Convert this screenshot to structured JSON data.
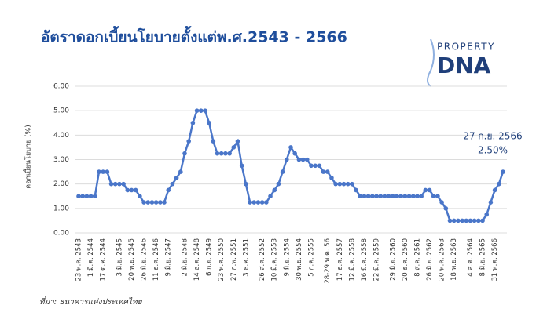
{
  "chart_data": {
    "type": "line",
    "title": "อัตราดอกเบี้ยนโยบายตั้งแต่พ.ศ.2543 - 2566",
    "y_label": "ดอกเบี้ยนโยบาย (%)",
    "source": "ที่มา: ธนาคารแห่งประเทศไทย",
    "annotation": "27 ก.ย. 2566",
    "logo": {
      "top": "PROPERTY",
      "bottom": "DNA"
    },
    "color": "#4a76c9",
    "grid": true,
    "ylim": [
      0,
      6
    ],
    "yticks": [
      {
        "value": 0,
        "label": "0.00"
      },
      {
        "value": 1,
        "label": "1.00"
      },
      {
        "value": 2,
        "label": "2.00"
      },
      {
        "value": 3,
        "label": "3.00"
      },
      {
        "value": 4,
        "label": "4.00"
      },
      {
        "value": 5,
        "label": "5.00"
      },
      {
        "value": 6,
        "label": "6.00"
      }
    ],
    "categories": [
      "23 พ.ค. 2543",
      null,
      null,
      "1 มี.ค. 2544",
      null,
      null,
      "17 ต.ค. 2544",
      null,
      null,
      null,
      "3 มิ.ย. 2545",
      null,
      null,
      "20 พ.ย. 2545",
      null,
      null,
      "26 มิ.ย. 2546",
      null,
      null,
      "11 ธ.ค. 2546",
      null,
      null,
      "9 มิ.ย. 2547",
      null,
      null,
      null,
      "2 มิ.ย. 2548",
      null,
      null,
      "14 ธ.ค. 2548",
      null,
      null,
      "6 ก.ย. 2549",
      null,
      null,
      "23 พ.ค. 2550",
      null,
      null,
      "27 ก.พ. 2551",
      null,
      null,
      "3 ธ.ค. 2551",
      null,
      null,
      null,
      "26 ส.ค. 2552",
      null,
      null,
      "10 มี.ค. 2553",
      null,
      null,
      "9 มิ.ย. 2554",
      null,
      null,
      "30 พ.ย. 2554",
      null,
      null,
      "5 ก.ค. 2555",
      null,
      null,
      null,
      "28-29 พ.ค. 56",
      null,
      null,
      "17 ธ.ค. 2557",
      null,
      null,
      "12 มี.ค. 2558",
      null,
      null,
      "16 มี.ค. 2558",
      null,
      null,
      "22 มี.ค. 2559",
      null,
      null,
      null,
      "29 มิ.ย. 2560",
      null,
      null,
      "20 ธ.ค. 2560",
      null,
      null,
      "8 ส.ค. 2561",
      null,
      null,
      "26 มิ.ย. 2562",
      null,
      null,
      "20 พ.ค. 2563",
      null,
      null,
      "18 พ.ย. 2563",
      null,
      null,
      null,
      "4 ส.ค. 2564",
      null,
      null,
      "8 มิ.ย. 2565",
      null,
      null,
      "31 พ.ค. 2566",
      null,
      null
    ],
    "values": [
      1.5,
      1.5,
      1.5,
      1.5,
      1.5,
      2.5,
      2.5,
      2.5,
      2,
      2,
      2,
      2,
      1.75,
      1.75,
      1.75,
      1.5,
      1.25,
      1.25,
      1.25,
      1.25,
      1.25,
      1.25,
      1.75,
      2,
      2.25,
      2.5,
      3.25,
      3.75,
      4.5,
      5,
      5,
      5,
      4.5,
      3.75,
      3.25,
      3.25,
      3.25,
      3.25,
      3.5,
      3.75,
      2.75,
      2,
      1.25,
      1.25,
      1.25,
      1.25,
      1.25,
      1.5,
      1.75,
      2,
      2.5,
      3,
      3.5,
      3.25,
      3,
      3,
      3,
      2.75,
      2.75,
      2.75,
      2.5,
      2.5,
      2.25,
      2,
      2,
      2,
      2,
      2,
      1.75,
      1.5,
      1.5,
      1.5,
      1.5,
      1.5,
      1.5,
      1.5,
      1.5,
      1.5,
      1.5,
      1.5,
      1.5,
      1.5,
      1.5,
      1.5,
      1.5,
      1.75,
      1.75,
      1.5,
      1.5,
      1.25,
      1,
      0.5,
      0.5,
      0.5,
      0.5,
      0.5,
      0.5,
      0.5,
      0.5,
      0.5,
      0.75,
      1.25,
      1.75,
      2,
      2.5
    ],
    "value_labels": [
      null,
      null,
      null,
      null,
      null,
      null,
      null,
      null,
      null,
      null,
      null,
      null,
      null,
      null,
      null,
      null,
      null,
      null,
      null,
      null,
      null,
      null,
      null,
      null,
      null,
      null,
      null,
      null,
      null,
      null,
      null,
      null,
      null,
      null,
      null,
      null,
      null,
      null,
      null,
      null,
      null,
      null,
      null,
      null,
      null,
      null,
      null,
      null,
      null,
      null,
      null,
      null,
      null,
      null,
      null,
      null,
      null,
      null,
      null,
      null,
      null,
      null,
      null,
      null,
      null,
      null,
      null,
      null,
      null,
      null,
      null,
      null,
      null,
      null,
      null,
      null,
      null,
      null,
      null,
      null,
      null,
      null,
      null,
      null,
      null,
      null,
      null,
      null,
      null,
      null,
      null,
      null,
      null,
      null,
      null,
      null,
      null,
      null,
      null,
      null,
      null,
      null,
      null,
      null,
      "2.50%"
    ]
  }
}
